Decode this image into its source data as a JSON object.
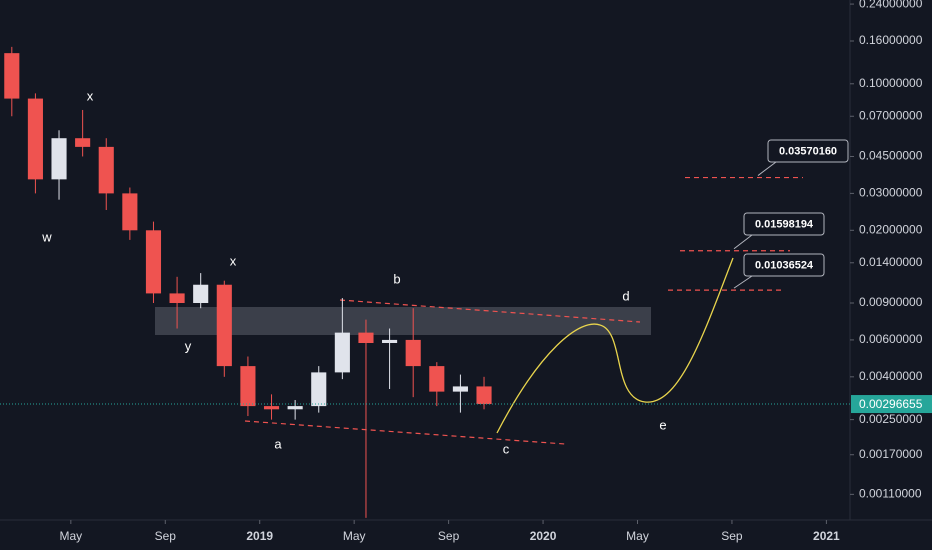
{
  "chart_data": {
    "type": "candlestick",
    "x": [
      "2018-02",
      "2018-03",
      "2018-04",
      "2018-05",
      "2018-06",
      "2018-07",
      "2018-08",
      "2018-09",
      "2018-10",
      "2018-11",
      "2018-12",
      "2019-01",
      "2019-02",
      "2019-03",
      "2019-04",
      "2019-05",
      "2019-06",
      "2019-07",
      "2019-08",
      "2019-09",
      "2019-10"
    ],
    "open": [
      0.14,
      0.085,
      0.035,
      0.055,
      0.05,
      0.03,
      0.02,
      0.01,
      0.009,
      0.011,
      0.0045,
      0.0029,
      0.0028,
      0.0029,
      0.0042,
      0.0065,
      0.0058,
      0.006,
      0.0045,
      0.0034,
      0.0036
    ],
    "high": [
      0.15,
      0.09,
      0.06,
      0.075,
      0.055,
      0.032,
      0.022,
      0.012,
      0.0125,
      0.0115,
      0.005,
      0.0033,
      0.0031,
      0.0045,
      0.0095,
      0.0075,
      0.0068,
      0.0085,
      0.0047,
      0.0041,
      0.004
    ],
    "low": [
      0.07,
      0.03,
      0.028,
      0.045,
      0.025,
      0.018,
      0.009,
      0.0068,
      0.0085,
      0.004,
      0.0026,
      0.0025,
      0.0025,
      0.0027,
      0.0039,
      0.00085,
      0.0035,
      0.0032,
      0.0029,
      0.0027,
      0.0028
    ],
    "close": [
      0.085,
      0.035,
      0.055,
      0.05,
      0.03,
      0.02,
      0.01,
      0.009,
      0.011,
      0.0045,
      0.0029,
      0.0028,
      0.0029,
      0.0042,
      0.0065,
      0.0058,
      0.006,
      0.0045,
      0.0034,
      0.0036,
      0.00296655
    ],
    "up_color": "#e0e3eb",
    "down_color": "#ef5350",
    "log_scale": true,
    "ylim": [
      0.00083,
      0.251
    ],
    "yticks": [
      {
        "value": 0.24,
        "label": "0.24000000"
      },
      {
        "value": 0.16,
        "label": "0.16000000"
      },
      {
        "value": 0.1,
        "label": "0.10000000"
      },
      {
        "value": 0.07,
        "label": "0.07000000"
      },
      {
        "value": 0.045,
        "label": "0.04500000"
      },
      {
        "value": 0.03,
        "label": "0.03000000"
      },
      {
        "value": 0.02,
        "label": "0.02000000"
      },
      {
        "value": 0.014,
        "label": "0.01400000"
      },
      {
        "value": 0.009,
        "label": "0.00900000"
      },
      {
        "value": 0.006,
        "label": "0.00600000"
      },
      {
        "value": 0.004,
        "label": "0.00400000"
      },
      {
        "value": 0.0025,
        "label": "0.00250000"
      },
      {
        "value": 0.0017,
        "label": "0.00170000"
      },
      {
        "value": 0.0011,
        "label": "0.00110000"
      }
    ],
    "xlim": [
      "2018-02",
      "2021-02"
    ],
    "xticks": [
      {
        "value": "2018-05",
        "label": "May"
      },
      {
        "value": "2018-09",
        "label": "Sep"
      },
      {
        "value": "2019-01",
        "label": "2019"
      },
      {
        "value": "2019-05",
        "label": "May"
      },
      {
        "value": "2019-09",
        "label": "Sep"
      },
      {
        "value": "2020-01",
        "label": "2020"
      },
      {
        "value": "2020-05",
        "label": "May"
      },
      {
        "value": "2020-09",
        "label": "Sep"
      },
      {
        "value": "2021-01",
        "label": "2021"
      }
    ],
    "last_price": {
      "value": 0.00296655,
      "label": "0.00296655",
      "color": "#26a69a"
    },
    "price_levels": [
      {
        "value": 0.0357016,
        "label": "0.03570160"
      },
      {
        "value": 0.01598194,
        "label": "0.01598194"
      },
      {
        "value": 0.01036524,
        "label": "0.01036524"
      }
    ],
    "annotations": [
      "w",
      "x",
      "x",
      "y",
      "a",
      "b",
      "c",
      "d",
      "e"
    ]
  }
}
